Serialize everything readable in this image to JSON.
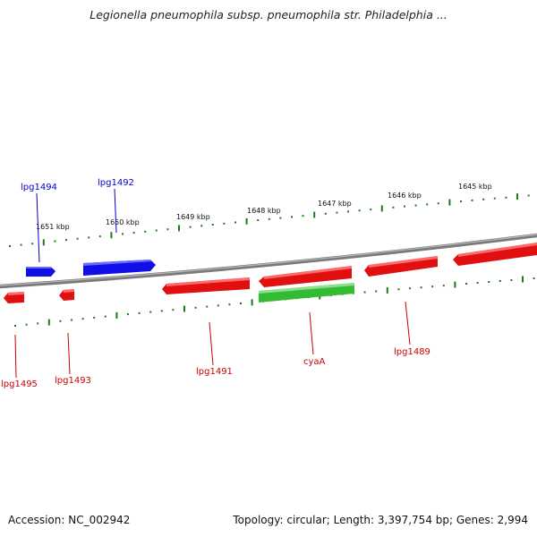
{
  "title": "Legionella pneumophila subsp. pneumophila str. Philadelphia ...",
  "footer": {
    "accession": "Accession: NC_002942",
    "topology": "Topology: circular; Length: 3,397,754 bp; Genes: 2,994"
  },
  "colors": {
    "backbone": "#8a8a8a",
    "forward_gene": "#1010e6",
    "reverse_gene": "#e01010",
    "rna_feature": "#33bb33",
    "tick": "#1f7a1f",
    "forward_label": "#0000cc",
    "reverse_label": "#cc0000"
  },
  "scale": {
    "unit": "kbp",
    "labels": [
      "1651 kbp",
      "1650 kbp",
      "1649 kbp",
      "1648 kbp",
      "1647 kbp",
      "1646 kbp",
      "1645 kbp"
    ]
  },
  "features": {
    "forward": [
      {
        "label": "lpg1494",
        "strand": "+",
        "color": "blue"
      },
      {
        "label": "lpg1492",
        "strand": "+",
        "color": "blue"
      },
      {
        "label": "",
        "strand": "-",
        "color": "red"
      },
      {
        "label": "",
        "strand": "-",
        "color": "red"
      },
      {
        "label": "",
        "strand": "-",
        "color": "red"
      }
    ],
    "reverse": [
      {
        "label": "lpg1495",
        "strand": "-",
        "color": "red"
      },
      {
        "label": "lpg1493",
        "strand": "-",
        "color": "red"
      },
      {
        "label": "lpg1491",
        "strand": "-",
        "color": "red"
      },
      {
        "label": "cyaA",
        "strand": "+",
        "color": "green"
      },
      {
        "label": "lpg1489",
        "strand": "-",
        "color": "red"
      }
    ]
  }
}
